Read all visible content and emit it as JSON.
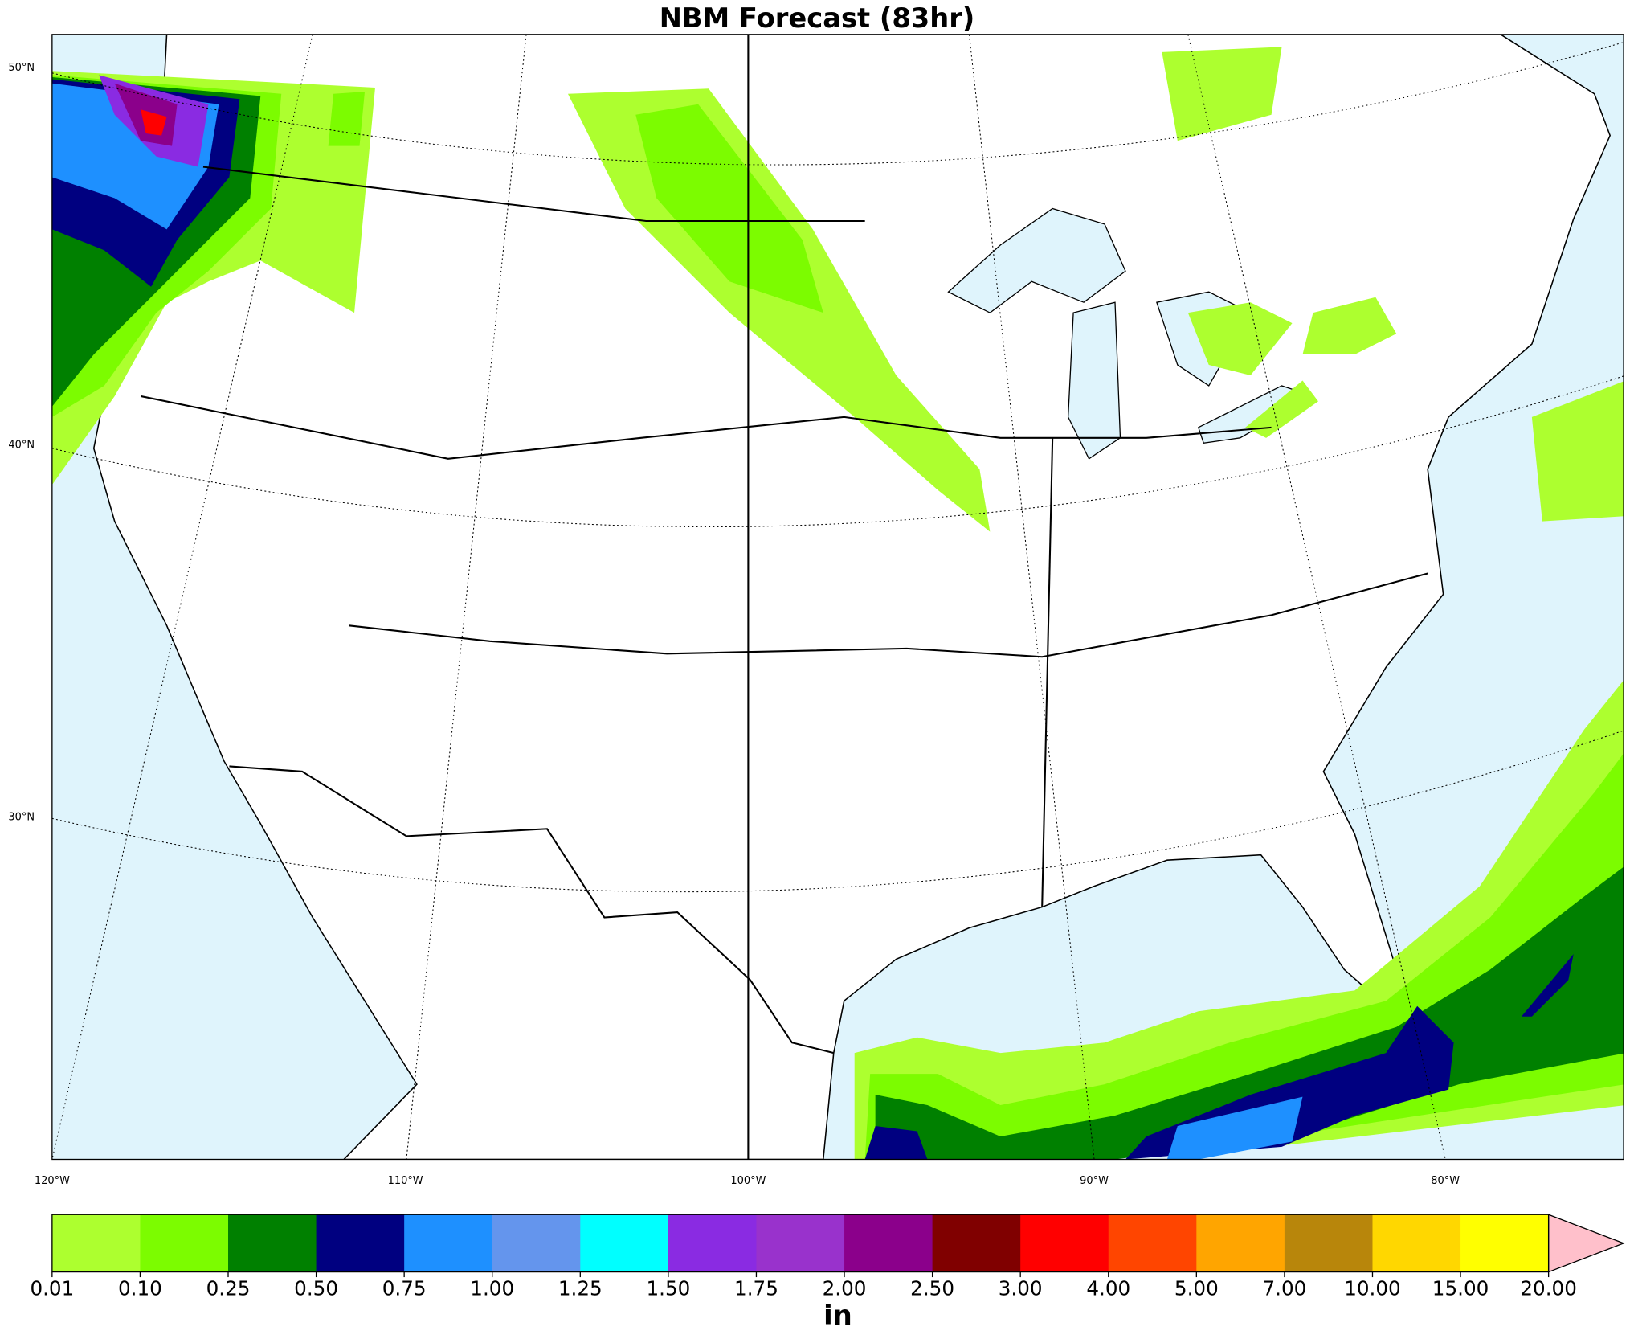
{
  "title": "NBM Forecast (83hr)",
  "graticule": {
    "lat_labels": [
      "50°N",
      "40°N",
      "30°N"
    ],
    "lon_labels": [
      "120°W",
      "110°W",
      "100°W",
      "90°W",
      "80°W"
    ]
  },
  "colorbar": {
    "label": "in",
    "levels": [
      {
        "value": 0.01,
        "label": "0.01"
      },
      {
        "value": 0.1,
        "label": "0.10"
      },
      {
        "value": 0.25,
        "label": "0.25"
      },
      {
        "value": 0.5,
        "label": "0.50"
      },
      {
        "value": 0.75,
        "label": "0.75"
      },
      {
        "value": 1,
        "label": "1.00"
      },
      {
        "value": 1.25,
        "label": "1.25"
      },
      {
        "value": 1.5,
        "label": "1.50"
      },
      {
        "value": 1.75,
        "label": "1.75"
      },
      {
        "value": 2,
        "label": "2.00"
      },
      {
        "value": 2.5,
        "label": "2.50"
      },
      {
        "value": 3,
        "label": "3.00"
      },
      {
        "value": 4,
        "label": "4.00"
      },
      {
        "value": 5,
        "label": "5.00"
      },
      {
        "value": 7,
        "label": "7.00"
      },
      {
        "value": 10,
        "label": "10.00"
      },
      {
        "value": 15,
        "label": "15.00"
      },
      {
        "value": 20,
        "label": "20.00"
      }
    ],
    "colors": [
      "#adff2f",
      "#7cfc00",
      "#008000",
      "#000080",
      "#1e90ff",
      "#6495ed",
      "#00ffff",
      "#8a2be2",
      "#9932cc",
      "#8b008b",
      "#800000",
      "#ff0000",
      "#ff4500",
      "#ffa500",
      "#b8860b",
      "#ffd700",
      "#ffff00"
    ],
    "extend_color": "#ffc0cb"
  }
}
